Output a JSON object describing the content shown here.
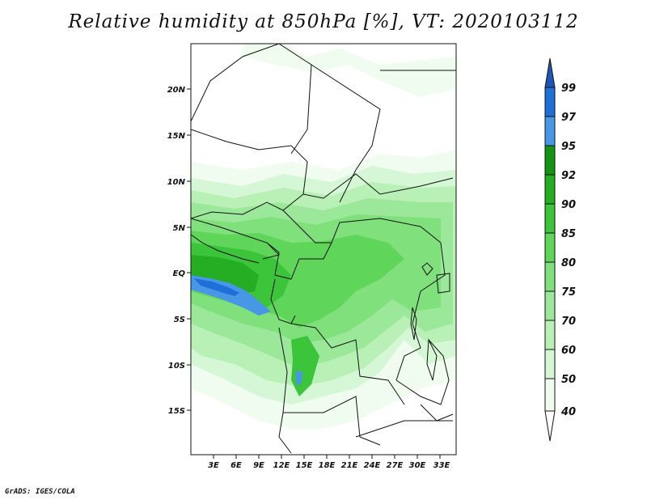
{
  "title": "Relative humidity at 850hPa [%], VT: 2020103112",
  "credit": "GrADS: IGES/COLA",
  "map": {
    "lon_labels": [
      "3E",
      "6E",
      "9E",
      "12E",
      "15E",
      "18E",
      "21E",
      "24E",
      "27E",
      "30E",
      "33E"
    ],
    "lat_labels": [
      "20N",
      "15N",
      "10N",
      "5N",
      "EQ",
      "5S",
      "10S",
      "15S"
    ]
  },
  "colorbar": {
    "levels": [
      "99",
      "97",
      "95",
      "92",
      "90",
      "85",
      "80",
      "75",
      "70",
      "60",
      "50",
      "40"
    ],
    "colors": {
      "c40": "#f0fcf0",
      "c50": "#d6f7d5",
      "c60": "#b9f0b6",
      "c70": "#9ce89a",
      "c75": "#7fe07c",
      "c80": "#5fd55a",
      "c85": "#3cc43a",
      "c90": "#25ad23",
      "c92": "#139513",
      "c95": "#4896e6",
      "c97": "#1f6fd8",
      "c99": "#1d56b8"
    }
  }
}
